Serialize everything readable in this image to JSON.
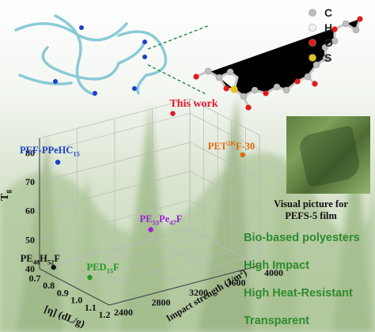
{
  "chart_data": {
    "type": "scatter",
    "zlabel": "Tg",
    "xlabel": "[η] (dL/g)",
    "ylabel": "Impact strength (J/m²)",
    "x_ticks": [
      "0.7",
      "0.8",
      "0.9",
      "1.0",
      "1.1",
      "1.2"
    ],
    "y_ticks": [
      "2400",
      "2800",
      "3200",
      "3600",
      "4000"
    ],
    "z_ticks": [
      "40",
      "50",
      "60",
      "70",
      "80"
    ],
    "xlim": [
      0.7,
      1.2
    ],
    "ylim": [
      2400,
      4000
    ],
    "zlim": [
      40,
      85
    ],
    "grid": true,
    "points": [
      {
        "label": "This work",
        "label_parts": [
          [
            "This work",
            ""
          ]
        ],
        "color": "#e8162a",
        "x": 0.78,
        "y": 3700,
        "z": 84.5
      },
      {
        "label": "PEF-PPeHC15",
        "label_parts": [
          [
            "PEF-PPeHC",
            ""
          ],
          [
            "15",
            "sub"
          ]
        ],
        "color": "#1b3fc9",
        "x": 0.75,
        "y": 2520,
        "z": 77
      },
      {
        "label": "PET2KF-30",
        "label_parts": [
          [
            "PET",
            ""
          ],
          [
            "2K",
            "sup"
          ],
          [
            "F-30",
            ""
          ]
        ],
        "color": "#e06a0a",
        "x": 1.18,
        "y": 3850,
        "z": 79
      },
      {
        "label": "PE53Pe47F",
        "label_parts": [
          [
            "PE",
            ""
          ],
          [
            "53",
            "sub"
          ],
          [
            "Pe",
            ""
          ],
          [
            "47",
            "sub"
          ],
          [
            "F",
            ""
          ]
        ],
        "color": "#9b1fd6",
        "x": 1.06,
        "y": 3050,
        "z": 57
      },
      {
        "label": "PE48H52F",
        "label_parts": [
          [
            "PE",
            ""
          ],
          [
            "48",
            "sub"
          ],
          [
            "H",
            ""
          ],
          [
            "52",
            "sub"
          ],
          [
            "F",
            ""
          ]
        ],
        "color": "#111111",
        "x": 0.76,
        "y": 2460,
        "z": 41.5
      },
      {
        "label": "PED15F",
        "label_parts": [
          [
            "PED",
            ""
          ],
          [
            "15",
            "sub"
          ],
          [
            "F",
            ""
          ]
        ],
        "color": "#1f9a1f",
        "x": 0.98,
        "y": 2520,
        "z": 43
      }
    ]
  },
  "atom_legend": [
    {
      "symbol": "C",
      "color": "#bdbdbd"
    },
    {
      "symbol": "H",
      "color": "#f2f2f2"
    },
    {
      "symbol": "O",
      "color": "#e01b1b"
    },
    {
      "symbol": "S",
      "color": "#e8c41a"
    }
  ],
  "photo_caption": [
    "Visual picture for",
    "PEFS-5 film"
  ],
  "features": [
    "Bio-based polyesters",
    "High Impact",
    "High Heat-Resistant",
    "Transparent"
  ]
}
